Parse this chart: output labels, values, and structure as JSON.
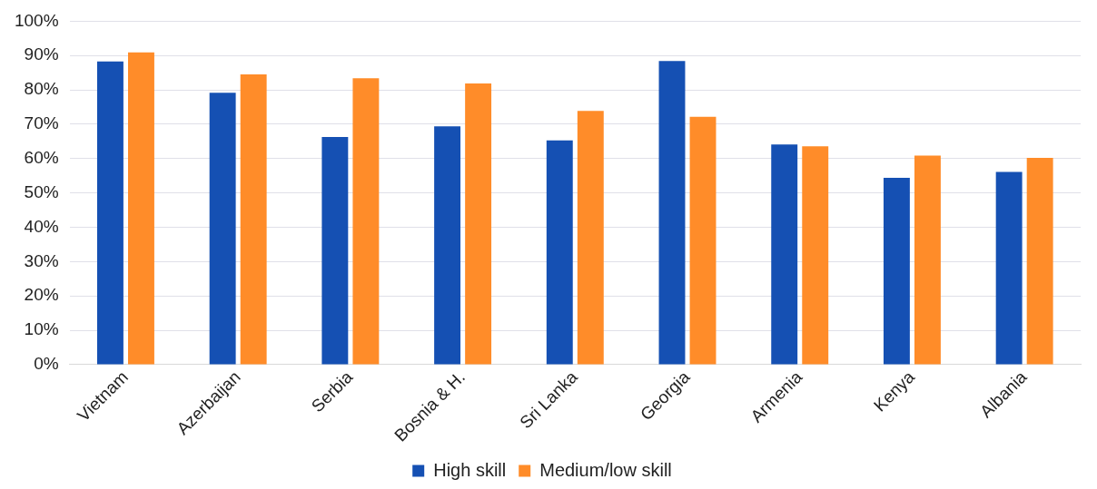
{
  "chart_data": {
    "type": "bar",
    "categories": [
      "Vietnam",
      "Azerbaijan",
      "Serbia",
      "Bosnia & H.",
      "Sri Lanka",
      "Georgia",
      "Armenia",
      "Kenya",
      "Albania"
    ],
    "series": [
      {
        "name": "High skill",
        "color": "#1550b3",
        "values": [
          88.3,
          79.2,
          66.3,
          69.4,
          65.3,
          88.4,
          64.1,
          54.4,
          56.1
        ]
      },
      {
        "name": "Medium/low skill",
        "color": "#ff8c29",
        "values": [
          90.9,
          84.5,
          83.4,
          81.9,
          73.9,
          72.2,
          63.6,
          60.9,
          60.2
        ]
      }
    ],
    "ylim": [
      0,
      100
    ],
    "yticks": [
      {
        "value": 0,
        "label": "0%"
      },
      {
        "value": 10,
        "label": "10%"
      },
      {
        "value": 20,
        "label": "20%"
      },
      {
        "value": 30,
        "label": "30%"
      },
      {
        "value": 40,
        "label": "40%"
      },
      {
        "value": 50,
        "label": "50%"
      },
      {
        "value": 60,
        "label": "60%"
      },
      {
        "value": 70,
        "label": "70%"
      },
      {
        "value": 80,
        "label": "80%"
      },
      {
        "value": 90,
        "label": "90%"
      },
      {
        "value": 100,
        "label": "100%"
      }
    ],
    "grid": "y",
    "legend": "bottom"
  }
}
